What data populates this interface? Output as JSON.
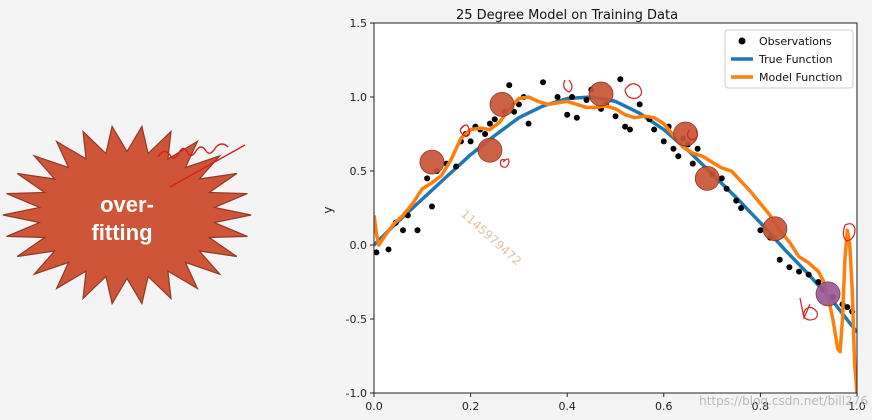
{
  "slide": {
    "burst_line1": "over-",
    "burst_line2": "fitting",
    "burst_color": "#cf5539",
    "watermark_diag": "1145979472",
    "watermark_url": "https://blog.csdn.net/bill276"
  },
  "chart_data": {
    "type": "scatter",
    "title": "25 Degree Model on Training Data",
    "xlabel": "",
    "ylabel": "y",
    "xlim": [
      0.0,
      1.0
    ],
    "ylim": [
      -1.0,
      1.5
    ],
    "xticks": [
      "0.0",
      "0.2",
      "0.4",
      "0.6",
      "0.8",
      "1.0"
    ],
    "yticks": [
      "-1.0",
      "-0.5",
      "0.0",
      "0.5",
      "1.0",
      "1.5"
    ],
    "legend_position": "top-right",
    "grid": false,
    "series": [
      {
        "name": "Observations",
        "kind": "points",
        "color": "#000000",
        "x": [
          0.005,
          0.03,
          0.045,
          0.06,
          0.07,
          0.09,
          0.11,
          0.12,
          0.13,
          0.15,
          0.17,
          0.18,
          0.19,
          0.2,
          0.21,
          0.22,
          0.23,
          0.24,
          0.25,
          0.27,
          0.28,
          0.29,
          0.3,
          0.31,
          0.32,
          0.35,
          0.38,
          0.4,
          0.41,
          0.42,
          0.44,
          0.45,
          0.47,
          0.48,
          0.5,
          0.51,
          0.52,
          0.53,
          0.55,
          0.57,
          0.58,
          0.6,
          0.61,
          0.62,
          0.63,
          0.64,
          0.65,
          0.66,
          0.67,
          0.7,
          0.72,
          0.73,
          0.75,
          0.76,
          0.8,
          0.82,
          0.84,
          0.86,
          0.88,
          0.9,
          0.92,
          0.93,
          0.95,
          0.97,
          0.98,
          0.99
        ],
        "y": [
          -0.05,
          -0.03,
          0.15,
          0.1,
          0.2,
          0.1,
          0.45,
          0.26,
          0.5,
          0.55,
          0.53,
          0.7,
          0.75,
          0.7,
          0.8,
          0.78,
          0.75,
          0.82,
          0.85,
          0.9,
          1.08,
          0.9,
          0.95,
          1.0,
          0.82,
          1.1,
          1.0,
          0.88,
          1.0,
          0.86,
          0.98,
          1.05,
          0.92,
          0.95,
          0.87,
          1.12,
          0.8,
          0.78,
          0.95,
          0.85,
          0.78,
          0.7,
          0.8,
          0.65,
          0.6,
          0.72,
          0.68,
          0.55,
          0.65,
          0.48,
          0.45,
          0.38,
          0.3,
          0.25,
          0.1,
          0.05,
          -0.1,
          -0.15,
          -0.18,
          -0.2,
          -0.25,
          -0.3,
          -0.35,
          -0.4,
          -0.42,
          -0.45
        ]
      },
      {
        "name": "True Function",
        "kind": "line",
        "color": "#1f77b4",
        "x": [
          0.0,
          0.05,
          0.1,
          0.15,
          0.2,
          0.25,
          0.3,
          0.35,
          0.4,
          0.45,
          0.5,
          0.55,
          0.6,
          0.65,
          0.7,
          0.75,
          0.8,
          0.85,
          0.9,
          0.95,
          1.0
        ],
        "y": [
          0.0,
          0.16,
          0.31,
          0.46,
          0.61,
          0.74,
          0.86,
          0.94,
          0.99,
          1.0,
          0.97,
          0.89,
          0.78,
          0.64,
          0.48,
          0.32,
          0.15,
          -0.03,
          -0.2,
          -0.38,
          -0.59
        ]
      },
      {
        "name": "Model Function",
        "kind": "line",
        "color": "#ff7f0e",
        "x": [
          0.0,
          0.005,
          0.01,
          0.02,
          0.04,
          0.06,
          0.08,
          0.1,
          0.12,
          0.14,
          0.16,
          0.18,
          0.2,
          0.22,
          0.24,
          0.26,
          0.28,
          0.3,
          0.32,
          0.34,
          0.36,
          0.38,
          0.4,
          0.42,
          0.44,
          0.46,
          0.48,
          0.5,
          0.52,
          0.54,
          0.56,
          0.58,
          0.6,
          0.62,
          0.64,
          0.66,
          0.68,
          0.7,
          0.72,
          0.74,
          0.76,
          0.78,
          0.8,
          0.82,
          0.84,
          0.86,
          0.88,
          0.9,
          0.92,
          0.93,
          0.94,
          0.95,
          0.96,
          0.965,
          0.97,
          0.975,
          0.98,
          0.985,
          0.99,
          0.995,
          1.0
        ],
        "y": [
          0.2,
          0.08,
          0.0,
          0.05,
          0.14,
          0.2,
          0.28,
          0.38,
          0.42,
          0.47,
          0.58,
          0.72,
          0.78,
          0.79,
          0.78,
          0.83,
          0.92,
          0.99,
          1.0,
          0.97,
          0.95,
          0.96,
          0.97,
          0.95,
          0.93,
          0.93,
          0.94,
          0.92,
          0.88,
          0.86,
          0.87,
          0.86,
          0.82,
          0.74,
          0.66,
          0.62,
          0.6,
          0.56,
          0.52,
          0.5,
          0.43,
          0.36,
          0.28,
          0.2,
          0.1,
          0.02,
          -0.08,
          -0.12,
          -0.18,
          -0.24,
          -0.35,
          -0.5,
          -0.7,
          -0.72,
          -0.5,
          -0.1,
          0.1,
          0.0,
          -0.3,
          -0.8,
          -1.0
        ]
      }
    ],
    "annotations": {
      "circles_x": [
        0.12,
        0.24,
        0.265,
        0.47,
        0.645,
        0.69,
        0.83,
        0.94
      ],
      "circles_y": [
        0.56,
        0.64,
        0.95,
        1.02,
        0.75,
        0.45,
        0.11,
        -0.33
      ],
      "circle_color": "#c95435",
      "highlight_color": "#9b5b96"
    }
  }
}
